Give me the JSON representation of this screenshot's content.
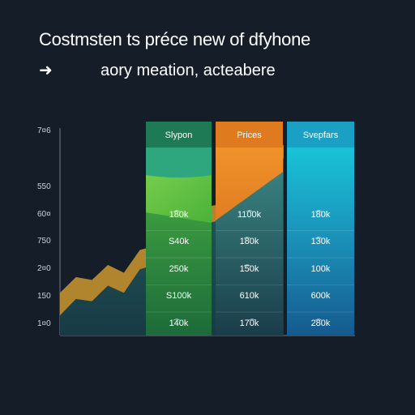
{
  "header": {
    "title": "Costmsten ts préce new of dfyhone",
    "arrow_icon": "arrow-right-icon",
    "subtitle": "aory meation, acteabere"
  },
  "colors": {
    "background": "#141d28",
    "green": "#3fae3a",
    "orange": "#e8892a",
    "cyan": "#1aa7cf",
    "area_dark": "#1f5b5c",
    "area_orange": "#b98a2e"
  },
  "chart_data": {
    "type": "area",
    "y_tick_labels": [
      "1¤0",
      "150",
      "2¤0",
      "750",
      "60¤",
      "550",
      "7¤6"
    ],
    "series": [
      {
        "values": [
          60,
          82,
          78,
          99,
          88,
          120,
          126,
          150,
          161,
          180,
          184,
          192,
          218,
          230,
          268
        ]
      }
    ],
    "table": {
      "columns": [
        {
          "header": "Slypon",
          "color": "#3fae3a",
          "cells": [
            "1͡80k",
            "S40k",
            "250k",
            "S100k",
            "1͡40k"
          ]
        },
        {
          "header": "Prices",
          "color": "#e8892a",
          "cells": [
            "11͡00k",
            "1͡80k",
            "1͡50k",
            "610k",
            "17͡0k"
          ]
        },
        {
          "header": "Svepfars",
          "color": "#1aa7cf",
          "cells": [
            "1͡80k",
            "1͡30k",
            "100k",
            "600k",
            "2͡80k"
          ]
        }
      ]
    },
    "grid": false,
    "legend": "none"
  }
}
